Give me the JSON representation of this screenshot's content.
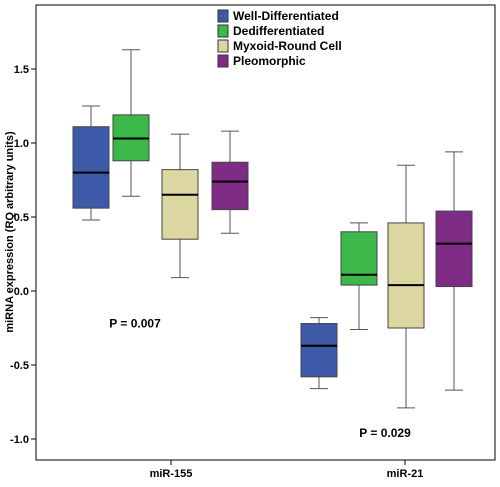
{
  "chart_data": {
    "type": "boxplot",
    "ylabel": "miRNA expression (RQ arbitrary units)",
    "xlabel": "",
    "ylim": [
      -1.1,
      1.85
    ],
    "yticks": [
      -1.0,
      -0.5,
      0.0,
      0.5,
      1.0,
      1.5
    ],
    "ytick_labels": [
      "-1.0",
      "-0.5",
      "0.0",
      "0.5",
      "1.0",
      "1.5"
    ],
    "categories": [
      "miR-155",
      "miR-21"
    ],
    "legend_position": "top-right",
    "series": [
      {
        "name": "Well-Differentiated",
        "color": "#3c5aa8",
        "boxes": [
          {
            "whisker_low": 0.48,
            "q1": 0.56,
            "median": 0.8,
            "q3": 1.11,
            "whisker_high": 1.25
          },
          {
            "whisker_low": -0.66,
            "q1": -0.58,
            "median": -0.37,
            "q3": -0.22,
            "whisker_high": -0.18
          }
        ]
      },
      {
        "name": "Dedifferentiated",
        "color": "#3cb84a",
        "boxes": [
          {
            "whisker_low": 0.64,
            "q1": 0.88,
            "median": 1.03,
            "q3": 1.19,
            "whisker_high": 1.63
          },
          {
            "whisker_low": -0.26,
            "q1": 0.04,
            "median": 0.11,
            "q3": 0.4,
            "whisker_high": 0.46
          }
        ]
      },
      {
        "name": "Myxoid-Round Cell",
        "color": "#dcd6a0",
        "boxes": [
          {
            "whisker_low": 0.09,
            "q1": 0.35,
            "median": 0.65,
            "q3": 0.82,
            "whisker_high": 1.06
          },
          {
            "whisker_low": -0.79,
            "q1": -0.25,
            "median": 0.04,
            "q3": 0.46,
            "whisker_high": 0.85
          }
        ]
      },
      {
        "name": "Pleomorphic",
        "color": "#7e2c86",
        "boxes": [
          {
            "whisker_low": 0.39,
            "q1": 0.55,
            "median": 0.74,
            "q3": 0.87,
            "whisker_high": 1.08
          },
          {
            "whisker_low": -0.67,
            "q1": 0.03,
            "median": 0.32,
            "q3": 0.54,
            "whisker_high": 0.94
          }
        ]
      }
    ],
    "annotations": [
      {
        "text": "P = 0.007",
        "category": "miR-155",
        "y": -0.22
      },
      {
        "text": "P = 0.029",
        "category": "miR-21",
        "y": -0.96
      }
    ]
  }
}
